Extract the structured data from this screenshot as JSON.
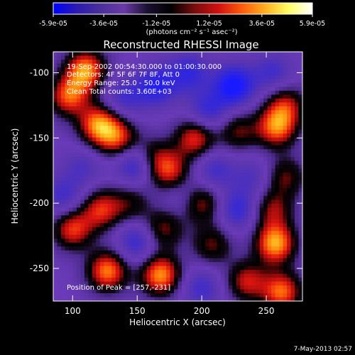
{
  "chart_data": {
    "type": "heatmap",
    "title": "Reconstructed RHESSI Image",
    "xlabel": "Heliocentric X (arcsec)",
    "ylabel": "Heliocentric Y (arcsec)",
    "xlim": [
      85,
      278
    ],
    "ylim": [
      -275,
      -84
    ],
    "x_ticks": [
      100,
      150,
      200,
      250
    ],
    "y_ticks": [
      -100,
      -150,
      -200,
      -250
    ],
    "colorbar": {
      "range": [
        -5.9e-05,
        5.9e-05
      ],
      "tick_labels": [
        "-5.9e-05",
        "-3.6e-05",
        "-1.2e-05",
        "1.2e-05",
        "3.6e-05",
        "5.9e-05"
      ],
      "tick_values": [
        -5.9e-05,
        -3.6e-05,
        -1.2e-05,
        1.2e-05,
        3.6e-05,
        5.9e-05
      ],
      "unit_label": "(photons cm⁻² s⁻¹ asec⁻²)",
      "colors": [
        "#0000ff",
        "#2b1bb0",
        "#4a2f9a",
        "#6a3aa8",
        "#1a1030",
        "#000000",
        "#7a0d0d",
        "#d01010",
        "#ff5a0a",
        "#ffb020",
        "#ffff66",
        "#ffffff"
      ]
    },
    "annotations": [
      "19-Sep-2002 00:54:30.000 to 01:00:30.000",
      "Detectors: 4F 5F 6F 7F 8F, Att 0",
      "Energy Range: 25.0 - 50.0 keV",
      "Clean    Total counts: 3.60E+03",
      "Position of Peak = [257,-231]"
    ],
    "peak": {
      "x": 257,
      "y": -231
    },
    "blobs": [
      {
        "x": 110,
        "y": -98,
        "v": 0.95
      },
      {
        "x": 97,
        "y": -118,
        "v": 0.8
      },
      {
        "x": 120,
        "y": -140,
        "v": 0.9
      },
      {
        "x": 135,
        "y": -150,
        "v": 0.7
      },
      {
        "x": 140,
        "y": -120,
        "v": -0.4
      },
      {
        "x": 165,
        "y": -110,
        "v": -0.6
      },
      {
        "x": 190,
        "y": -100,
        "v": -0.5
      },
      {
        "x": 225,
        "y": -110,
        "v": -0.8
      },
      {
        "x": 255,
        "y": -100,
        "v": -0.4
      },
      {
        "x": 265,
        "y": -125,
        "v": 0.6
      },
      {
        "x": 258,
        "y": -142,
        "v": 0.85
      },
      {
        "x": 228,
        "y": -145,
        "v": 0.5
      },
      {
        "x": 195,
        "y": -150,
        "v": 0.75
      },
      {
        "x": 205,
        "y": -130,
        "v": -0.5
      },
      {
        "x": 175,
        "y": -175,
        "v": 0.7
      },
      {
        "x": 160,
        "y": -165,
        "v": 0.55
      },
      {
        "x": 150,
        "y": -170,
        "v": -0.7
      },
      {
        "x": 108,
        "y": -172,
        "v": -0.3
      },
      {
        "x": 93,
        "y": -195,
        "v": -0.4
      },
      {
        "x": 100,
        "y": -220,
        "v": 0.75
      },
      {
        "x": 122,
        "y": -205,
        "v": 0.7
      },
      {
        "x": 127,
        "y": -252,
        "v": 0.9
      },
      {
        "x": 150,
        "y": -230,
        "v": -0.5
      },
      {
        "x": 170,
        "y": -220,
        "v": 0.55
      },
      {
        "x": 168,
        "y": -255,
        "v": 0.95
      },
      {
        "x": 200,
        "y": -200,
        "v": 0.6
      },
      {
        "x": 208,
        "y": -232,
        "v": 0.5
      },
      {
        "x": 228,
        "y": -205,
        "v": -0.5
      },
      {
        "x": 240,
        "y": -180,
        "v": -0.3
      },
      {
        "x": 255,
        "y": -205,
        "v": 0.55
      },
      {
        "x": 265,
        "y": -180,
        "v": 0.5
      },
      {
        "x": 257,
        "y": -231,
        "v": 1.0
      },
      {
        "x": 235,
        "y": -260,
        "v": 0.65
      },
      {
        "x": 262,
        "y": -268,
        "v": 0.85
      },
      {
        "x": 200,
        "y": -265,
        "v": -0.4
      },
      {
        "x": 210,
        "y": -175,
        "v": -0.4
      },
      {
        "x": 145,
        "y": -200,
        "v": 0.4
      },
      {
        "x": 185,
        "y": -195,
        "v": -0.2
      }
    ]
  },
  "footer": {
    "timestamp": "7-May-2013 02:57"
  }
}
